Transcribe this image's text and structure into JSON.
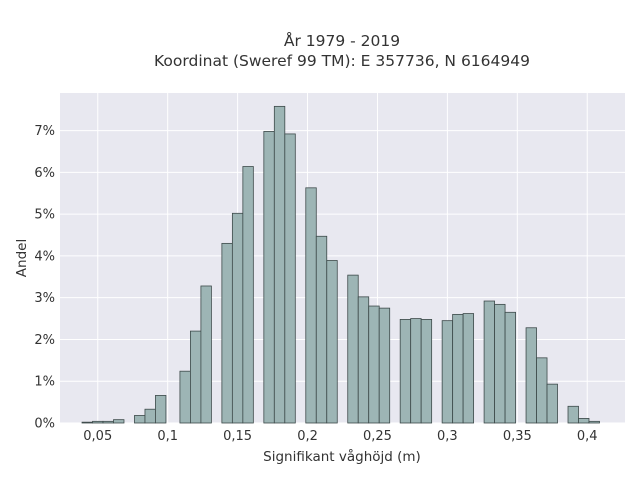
{
  "chart_data": {
    "type": "bar",
    "title": "År 1979 - 2019",
    "subtitle": "Koordinat (Sweref 99 TM): E 357736, N 6164949",
    "xlabel": "Signifikant våghöjd (m)",
    "ylabel": "Andel",
    "xlim": [
      0.023,
      0.427
    ],
    "ylim": [
      0,
      7.9
    ],
    "x_ticks": [
      0.05,
      0.1,
      0.15,
      0.2,
      0.25,
      0.3,
      0.35,
      0.4
    ],
    "x_tick_labels": [
      "0,05",
      "0,1",
      "0,15",
      "0,2",
      "0,25",
      "0,3",
      "0,35",
      "0,4"
    ],
    "y_ticks": [
      0,
      1,
      2,
      3,
      4,
      5,
      6,
      7
    ],
    "y_tick_labels": [
      "0%",
      "1%",
      "2%",
      "3%",
      "4%",
      "5%",
      "6%",
      "7%"
    ],
    "bin_width": 0.0075,
    "grid": true,
    "colors": {
      "bar_fill": "#9db5b5",
      "bar_edge": "#3d4a4a",
      "plot_bg": "#e8e8f0",
      "grid": "#ffffff"
    },
    "x": [
      0.0425,
      0.05,
      0.0575,
      0.065,
      0.08,
      0.0875,
      0.095,
      0.1125,
      0.12,
      0.1275,
      0.1425,
      0.15,
      0.1575,
      0.1725,
      0.18,
      0.1875,
      0.2025,
      0.21,
      0.2175,
      0.2325,
      0.24,
      0.2475,
      0.255,
      0.27,
      0.2775,
      0.285,
      0.3,
      0.3075,
      0.315,
      0.33,
      0.3375,
      0.345,
      0.36,
      0.3675,
      0.375,
      0.39,
      0.3975,
      0.405
    ],
    "values": [
      0.02,
      0.04,
      0.04,
      0.08,
      0.18,
      0.33,
      0.66,
      1.24,
      2.2,
      3.28,
      4.3,
      5.02,
      6.14,
      6.98,
      7.58,
      6.92,
      5.63,
      4.47,
      3.89,
      3.54,
      3.02,
      2.8,
      2.75,
      2.48,
      2.5,
      2.48,
      2.45,
      2.6,
      2.62,
      2.92,
      2.84,
      2.65,
      2.28,
      1.56,
      0.93,
      0.4,
      0.11,
      0.04
    ]
  }
}
